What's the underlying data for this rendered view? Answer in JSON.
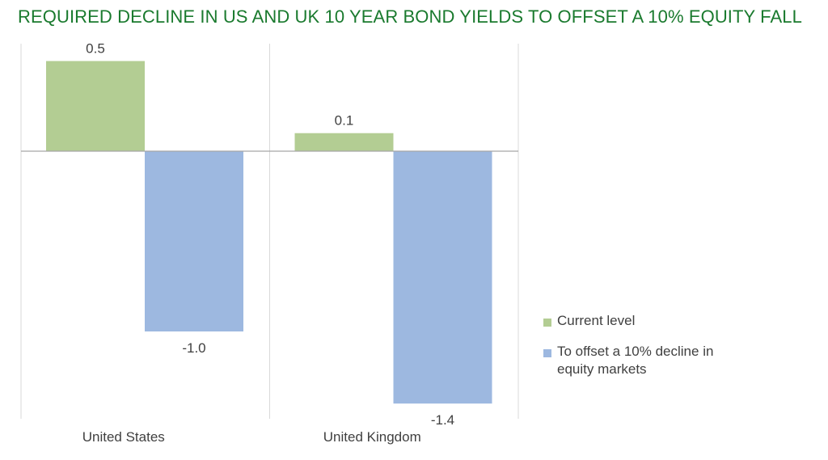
{
  "title": "REQUIRED DECLINE IN US AND UK 10 YEAR BOND YIELDS TO OFFSET A 10% EQUITY FALL",
  "colors": {
    "title": "#1a7a2e",
    "current": "#b3cd93",
    "offset": "#9db8e0",
    "axis": "#a6a6a6",
    "text": "#404040"
  },
  "chart_data": {
    "type": "bar",
    "title": "REQUIRED DECLINE IN US AND UK 10 YEAR BOND YIELDS TO OFFSET A 10% EQUITY FALL",
    "categories": [
      "United States",
      "United Kingdom"
    ],
    "series": [
      {
        "name": "Current level",
        "values": [
          0.5,
          0.1
        ],
        "labels": [
          "0.5",
          "0.1"
        ],
        "color": "#b3cd93"
      },
      {
        "name": "To offset a 10% decline in equity markets",
        "values": [
          -1.0,
          -1.4
        ],
        "labels": [
          "-1.0",
          "-1.4"
        ],
        "color": "#9db8e0"
      }
    ],
    "xlabel": "",
    "ylabel": "",
    "ylim": [
      -1.5,
      0.6
    ],
    "grid": false,
    "legend_position": "right"
  },
  "legend": [
    {
      "label": "Current level",
      "color": "#b3cd93"
    },
    {
      "label": "To offset a 10% decline in equity markets",
      "color": "#9db8e0"
    }
  ]
}
